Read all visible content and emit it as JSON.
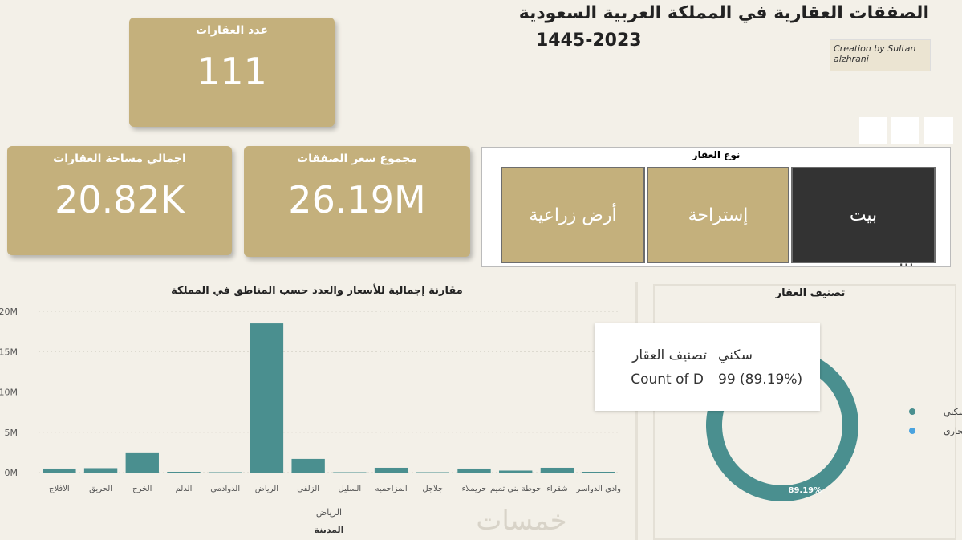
{
  "header": {
    "title": "الصفقات العقارية في المملكة العربية السعودية",
    "subtitle": "1445-2023",
    "credit": "Creation by Sultan alzhrani"
  },
  "cards": [
    {
      "label": "عدد العقارات",
      "value": "111"
    },
    {
      "label": "اجمالي مساحة العقارات",
      "value": "20.82K"
    },
    {
      "label": "مجموع سعر الصفقات",
      "value": "26.19M"
    }
  ],
  "slicer": {
    "title": "نوع العقار",
    "options": [
      "أرض زراعية",
      "إستراحة",
      "بيت"
    ],
    "selected": 2
  },
  "tooltip": {
    "field": "تصنيف العقار",
    "category": "سكني",
    "measure": "Count of D",
    "value": "99 (89.19%)"
  },
  "watermark": "خمسات",
  "chart_data": [
    {
      "type": "bar",
      "title": "مقارنة إجمالية للأسعار والعدد حسب المناطق في المملكة",
      "xlabel": "المدينة",
      "group_label": "الرياض",
      "categories": [
        "الافلاج",
        "الحريق",
        "الخرج",
        "الدلم",
        "الدوادمي",
        "الرياض",
        "الزلفي",
        "السليل",
        "المزاحميه",
        "جلاجل",
        "حريملاء",
        "حوطة بني تميم",
        "شقراء",
        "وادي الدواسر"
      ],
      "values": [
        500000,
        550000,
        2500000,
        100000,
        50000,
        18500000,
        1700000,
        50000,
        600000,
        50000,
        500000,
        250000,
        600000,
        100000
      ],
      "color": "#4a8f8f",
      "ylim": [
        0,
        20000000
      ],
      "yticks": [
        {
          "value": 0,
          "label": "0M"
        },
        {
          "value": 5000000,
          "label": "5M"
        },
        {
          "value": 10000000,
          "label": "10M"
        },
        {
          "value": 15000000,
          "label": "15M"
        },
        {
          "value": 20000000,
          "label": "20M"
        }
      ],
      "grid": true
    },
    {
      "type": "pie",
      "title": "تصنيف العقار",
      "categories": [
        "سكني",
        "تجاري"
      ],
      "values": [
        89.19,
        10.81
      ],
      "value_labels": [
        "89.19%",
        null
      ],
      "colors": [
        "#4a8f8f",
        "#4aa3df"
      ],
      "donut": true,
      "legend": "right"
    }
  ]
}
